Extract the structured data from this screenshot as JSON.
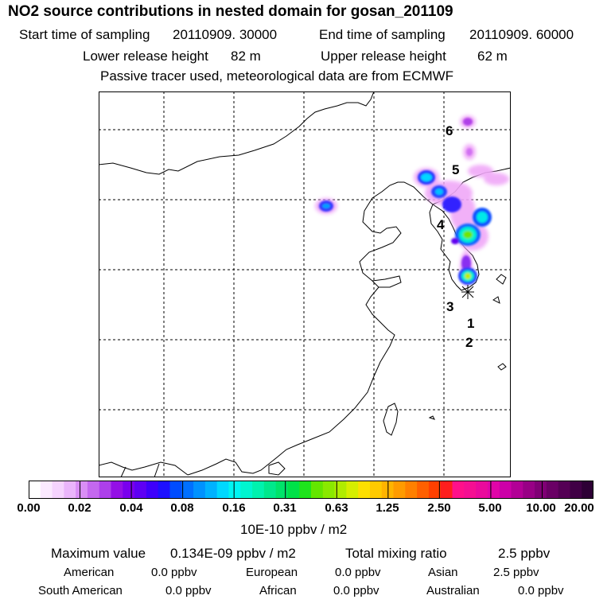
{
  "title": "NO2 source contributions in nested domain for gosan_201109",
  "start_label": "Start time of sampling",
  "start_value": "20110909. 30000",
  "end_label": "End time of sampling",
  "end_value": "20110909. 60000",
  "lower_label": "Lower release height",
  "lower_value": "82 m",
  "upper_label": "Upper release height",
  "upper_value": "62 m",
  "tracer_note": "Passive tracer used, meteorological data are from ECMWF",
  "map_markers": [
    "6",
    "5",
    "4",
    "3",
    "1",
    "2"
  ],
  "colorbar_labels": [
    "0.00",
    "0.02",
    "0.04",
    "0.08",
    "0.16",
    "0.31",
    "0.63",
    "1.25",
    "2.50",
    "5.00",
    "10.00",
    "20.00"
  ],
  "colorbar_colors": [
    "#ffffff",
    "#fbe9ff",
    "#f5d3fe",
    "#eab5fb",
    "#d98ef5",
    "#c468ef",
    "#ad3fea",
    "#9410e6",
    "#7a00ee",
    "#5e00f4",
    "#3e00fb",
    "#1d10ff",
    "#004cff",
    "#0070ff",
    "#0092ff",
    "#00b2ff",
    "#00d8ff",
    "#00f5f2",
    "#00f5d0",
    "#00f2ae",
    "#00e88c",
    "#00e36a",
    "#00e148",
    "#1fe41c",
    "#64e600",
    "#8ae900",
    "#b0ec00",
    "#d6ee00",
    "#fde000",
    "#ffca00",
    "#ffb400",
    "#ff9b00",
    "#ff8000",
    "#ff6000",
    "#ff4000",
    "#ff1e1e",
    "#ff108a",
    "#f50f92",
    "#ea0a9c",
    "#e005a8",
    "#cc00a8",
    "#b20096",
    "#980085",
    "#800075",
    "#6a0065",
    "#550055",
    "#400045",
    "#2d0035"
  ],
  "units": "10E-10 ppbv / m2",
  "max_label": "Maximum value",
  "max_value": "0.134E-09 ppbv / m2",
  "total_label": "Total mixing ratio",
  "total_value": "2.5 ppbv",
  "regions": [
    {
      "name": "American",
      "value": "0.0 ppbv"
    },
    {
      "name": "European",
      "value": "0.0 ppbv"
    },
    {
      "name": "Asian",
      "value": "2.5 ppbv"
    },
    {
      "name": "South American",
      "value": "0.0 ppbv"
    },
    {
      "name": "African",
      "value": "0.0 ppbv"
    },
    {
      "name": "Australian",
      "value": "0.0 ppbv"
    }
  ]
}
